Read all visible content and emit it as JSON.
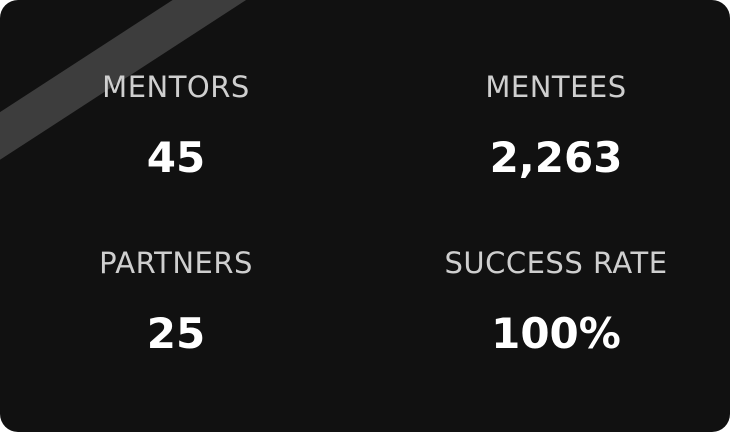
{
  "stats": [
    {
      "label": "MENTORS",
      "value": "45"
    },
    {
      "label": "MENTEES",
      "value": "2,263"
    },
    {
      "label": "PARTNERS",
      "value": "25"
    },
    {
      "label": "SUCCESS RATE",
      "value": "100%"
    }
  ],
  "colors": {
    "card_background": "#111111",
    "ribbon": "#3d3d3d",
    "label": "#cfcfcf",
    "value": "#ffffff"
  }
}
